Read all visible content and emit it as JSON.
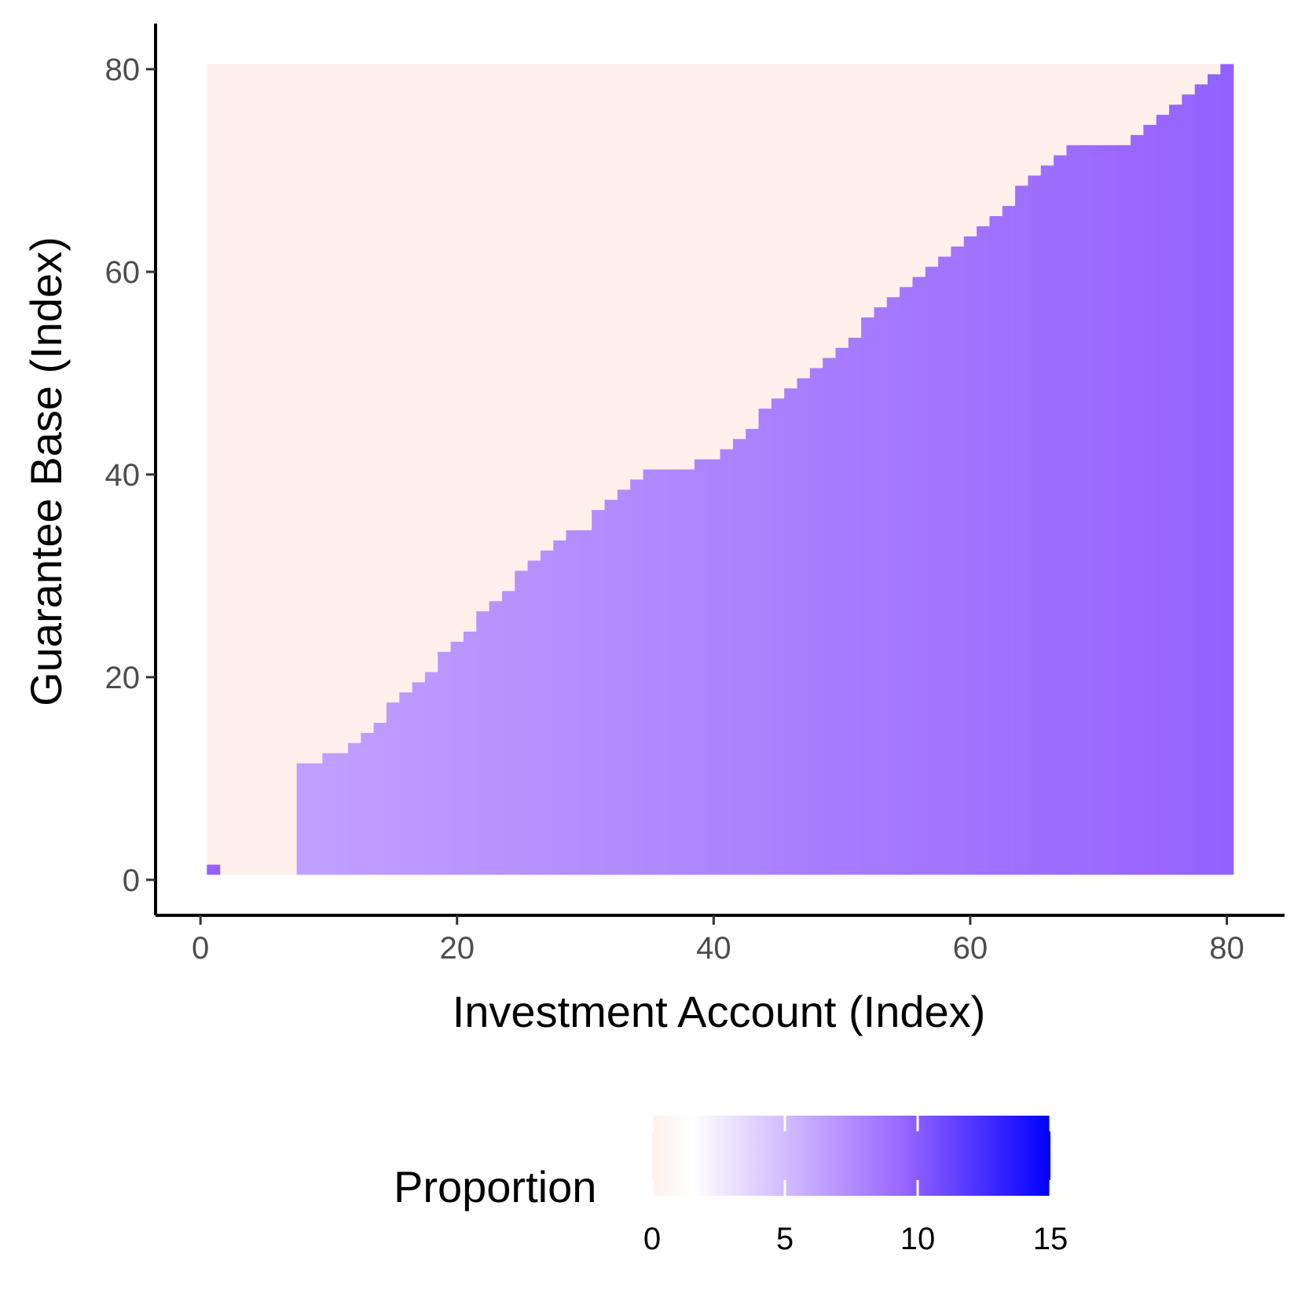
{
  "chart_data": {
    "type": "heatmap",
    "xlabel": "Investment Account (Index)",
    "ylabel": "Guarantee Base (Index)",
    "xlim": [
      -3.5,
      84.5
    ],
    "ylim": [
      -3.5,
      84.5
    ],
    "x_ticks": [
      "0",
      "20",
      "40",
      "60",
      "80"
    ],
    "y_ticks": [
      "0",
      "20",
      "40",
      "60",
      "80"
    ],
    "x_tick_values": [
      0,
      20,
      40,
      60,
      80
    ],
    "y_tick_values": [
      0,
      20,
      40,
      60,
      80
    ],
    "grid": false,
    "x_range": [
      1,
      80
    ],
    "y_range": [
      1,
      80
    ],
    "boundary_upper_y": [
      1,
      0,
      0,
      0,
      0,
      0,
      0,
      11,
      11,
      12,
      12,
      13,
      14,
      15,
      17,
      18,
      19,
      20,
      22,
      23,
      24,
      26,
      27,
      28,
      30,
      31,
      32,
      33,
      34,
      34,
      36,
      37,
      38,
      39,
      40,
      40,
      40,
      40,
      41,
      41,
      42,
      43,
      44,
      46,
      47,
      48,
      49,
      50,
      51,
      52,
      53,
      55,
      56,
      57,
      58,
      59,
      60,
      61,
      62,
      63,
      64,
      65,
      66,
      68,
      69,
      70,
      71,
      72,
      72,
      72,
      72,
      72,
      73,
      74,
      75,
      76,
      77,
      78,
      79,
      80
    ],
    "value_start": 6.5,
    "value_end": 9.7,
    "value_point_x1": 10,
    "legend": {
      "title": "Proportion",
      "position": "bottom",
      "min": 0,
      "max": 15,
      "ticks": [
        "0",
        "5",
        "10",
        "15"
      ],
      "tick_values": [
        0,
        5,
        10,
        15
      ],
      "colors": [
        "#fff0ec",
        "#ffffff",
        "#9966ff",
        "#0000ff"
      ],
      "color_stops": [
        0,
        0.1,
        0.63,
        1
      ]
    },
    "zero_fill": "#fff0ec"
  }
}
